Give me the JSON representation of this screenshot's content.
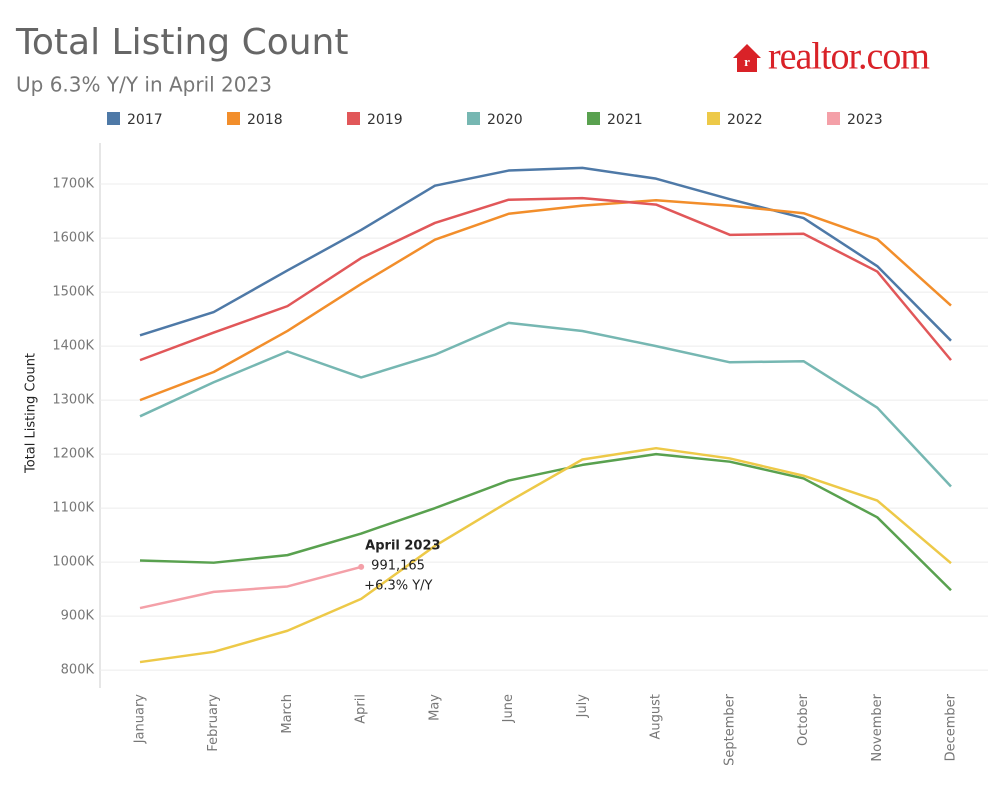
{
  "chart_data": {
    "type": "line",
    "title": "Total Listing Count",
    "subtitle": "Up 6.3% Y/Y in April 2023",
    "logo": "realtor.com",
    "y_label": "Total Listing Count",
    "categories": [
      "January",
      "February",
      "March",
      "April",
      "May",
      "June",
      "July",
      "August",
      "September",
      "October",
      "November",
      "December"
    ],
    "series": [
      {
        "name": "2017",
        "color": "#4e79a7",
        "values": [
          1420000,
          1463000,
          1540000,
          1615000,
          1697000,
          1725000,
          1730000,
          1710000,
          1672000,
          1637000,
          1548000,
          1410000
        ]
      },
      {
        "name": "2018",
        "color": "#f28e2b",
        "values": [
          1300000,
          1352000,
          1428000,
          1515000,
          1597000,
          1645000,
          1660000,
          1670000,
          1660000,
          1646000,
          1598000,
          1475000
        ]
      },
      {
        "name": "2019",
        "color": "#e15759",
        "values": [
          1374000,
          1425000,
          1474000,
          1563000,
          1628000,
          1671000,
          1674000,
          1662000,
          1606000,
          1608000,
          1538000,
          1374000
        ]
      },
      {
        "name": "2020",
        "color": "#76b7b2",
        "values": [
          1270000,
          1333000,
          1390000,
          1342000,
          1384000,
          1443000,
          1428000,
          1400000,
          1370000,
          1372000,
          1286000,
          1140000
        ]
      },
      {
        "name": "2021",
        "color": "#59a14f",
        "values": [
          1003000,
          999000,
          1013000,
          1053000,
          1100000,
          1151000,
          1180000,
          1200000,
          1186000,
          1155000,
          1083000,
          948000
        ]
      },
      {
        "name": "2022",
        "color": "#edc948",
        "values": [
          815000,
          834000,
          873000,
          932000,
          1030000,
          1112000,
          1190000,
          1211000,
          1192000,
          1160000,
          1114000,
          998000
        ]
      },
      {
        "name": "2023",
        "color": "#f4a0a8",
        "values": [
          915000,
          945000,
          955000,
          991165,
          null,
          null,
          null,
          null,
          null,
          null,
          null,
          null
        ],
        "value_labels": [
          null,
          null,
          null,
          "991,165",
          null,
          null,
          null,
          null,
          null,
          null,
          null,
          null
        ]
      }
    ],
    "annotation": {
      "title": "April 2023",
      "change": "+6.3% Y/Y"
    },
    "ylim": [
      767000,
      1776000
    ],
    "yticks": [
      {
        "value": 800000,
        "label": "800K"
      },
      {
        "value": 900000,
        "label": "900K"
      },
      {
        "value": 1000000,
        "label": "1000K"
      },
      {
        "value": 1100000,
        "label": "1100K"
      },
      {
        "value": 1200000,
        "label": "1200K"
      },
      {
        "value": 1300000,
        "label": "1300K"
      },
      {
        "value": 1400000,
        "label": "1400K"
      },
      {
        "value": 1500000,
        "label": "1500K"
      },
      {
        "value": 1600000,
        "label": "1600K"
      },
      {
        "value": 1700000,
        "label": "1700K"
      }
    ],
    "grid": true
  }
}
